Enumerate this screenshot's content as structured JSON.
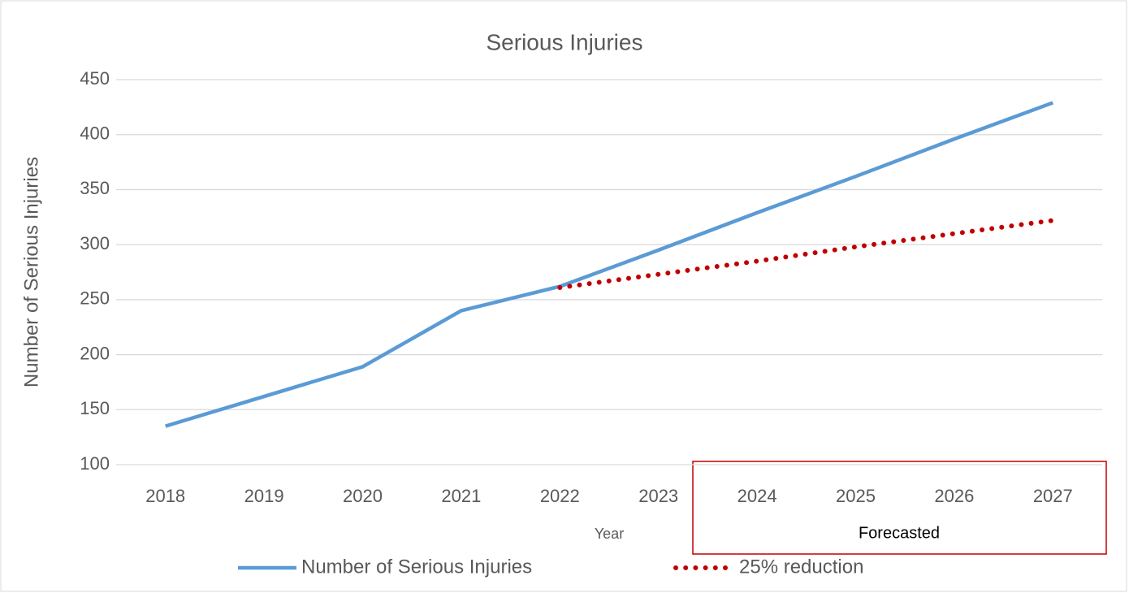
{
  "chart_data": {
    "type": "line",
    "title": "Serious Injuries",
    "x_label": "Year",
    "y_label": "Number of Serious Injuries",
    "annotation": "Forecasted",
    "categories": [
      "2018",
      "2019",
      "2020",
      "2021",
      "2022",
      "2023",
      "2024",
      "2025",
      "2026",
      "2027"
    ],
    "series": [
      {
        "name": "Number of Serious Injuries",
        "color": "#5b9bd5",
        "style": "solid",
        "values": [
          135,
          162,
          189,
          240,
          262,
          295,
          329,
          362,
          396,
          429
        ]
      },
      {
        "name": "25% reduction",
        "color": "#c00000",
        "style": "dotted",
        "values": [
          null,
          null,
          null,
          null,
          261,
          273,
          285,
          298,
          310,
          322
        ]
      }
    ],
    "ylim": [
      100,
      450
    ],
    "yticks": [
      100,
      150,
      200,
      250,
      300,
      350,
      400,
      450
    ],
    "grid": true,
    "legend": "bottom"
  }
}
